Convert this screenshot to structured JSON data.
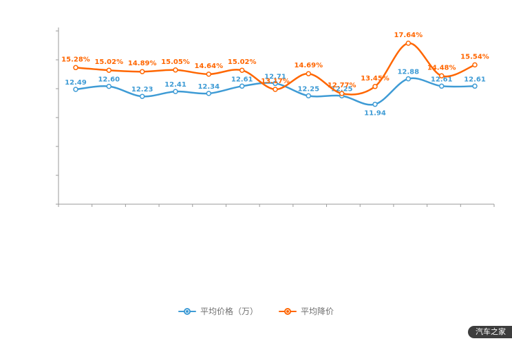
{
  "chart_data": {
    "type": "line",
    "title": "",
    "xlabel": "",
    "ylabel": "",
    "grid": false,
    "legend_position": "bottom",
    "categories": [
      "",
      "",
      "",
      "",
      "",
      "",
      "",
      "",
      "",
      "",
      "",
      "",
      ""
    ],
    "series": [
      {
        "name": "平均价格（万）",
        "color": "#3e9bd5",
        "values": [
          12.49,
          12.6,
          12.23,
          12.41,
          12.34,
          12.61,
          12.71,
          12.25,
          12.25,
          11.94,
          12.88,
          12.61,
          12.61
        ],
        "labels": [
          "12.49",
          "12.60",
          "12.23",
          "12.41",
          "12.34",
          "12.61",
          "12.71",
          "12.25",
          "12.25",
          "11.94",
          "12.88",
          "12.61",
          "12.61"
        ],
        "y_domain": [
          11.5,
          13.2
        ],
        "y_range": [
          102,
          169
        ],
        "label_dy": [
          -7,
          -7,
          -7,
          -7,
          -7,
          -7,
          -7,
          -7,
          -7,
          16,
          -7,
          -7,
          -7
        ]
      },
      {
        "name": "平均降价",
        "color": "#ff6600",
        "values": [
          15.28,
          15.02,
          14.89,
          15.05,
          14.64,
          15.02,
          13.17,
          14.69,
          12.77,
          13.45,
          17.64,
          14.48,
          15.54
        ],
        "labels": [
          "15.28%",
          "15.02%",
          "14.89%",
          "15.05%",
          "14.64%",
          "15.02%",
          "13.17%",
          "14.69%",
          "12.77%",
          "13.45%",
          "17.64%",
          "14.48%",
          "15.54%"
        ],
        "y_domain": [
          12.3,
          18.1
        ],
        "y_range": [
          56,
          143
        ],
        "label_dy": [
          -9,
          -9,
          -9,
          -9,
          -9,
          -9,
          -9,
          -9,
          -9,
          -9,
          -9,
          -9,
          -9
        ]
      }
    ]
  },
  "legend": {
    "items": [
      {
        "label": "平均价格（万）",
        "color": "#3e9bd5"
      },
      {
        "label": "平均降价",
        "color": "#ff6600"
      }
    ]
  },
  "watermark": {
    "text": "汽车之家",
    "bg": "#3d3d3d",
    "fg": "#ffffff"
  }
}
